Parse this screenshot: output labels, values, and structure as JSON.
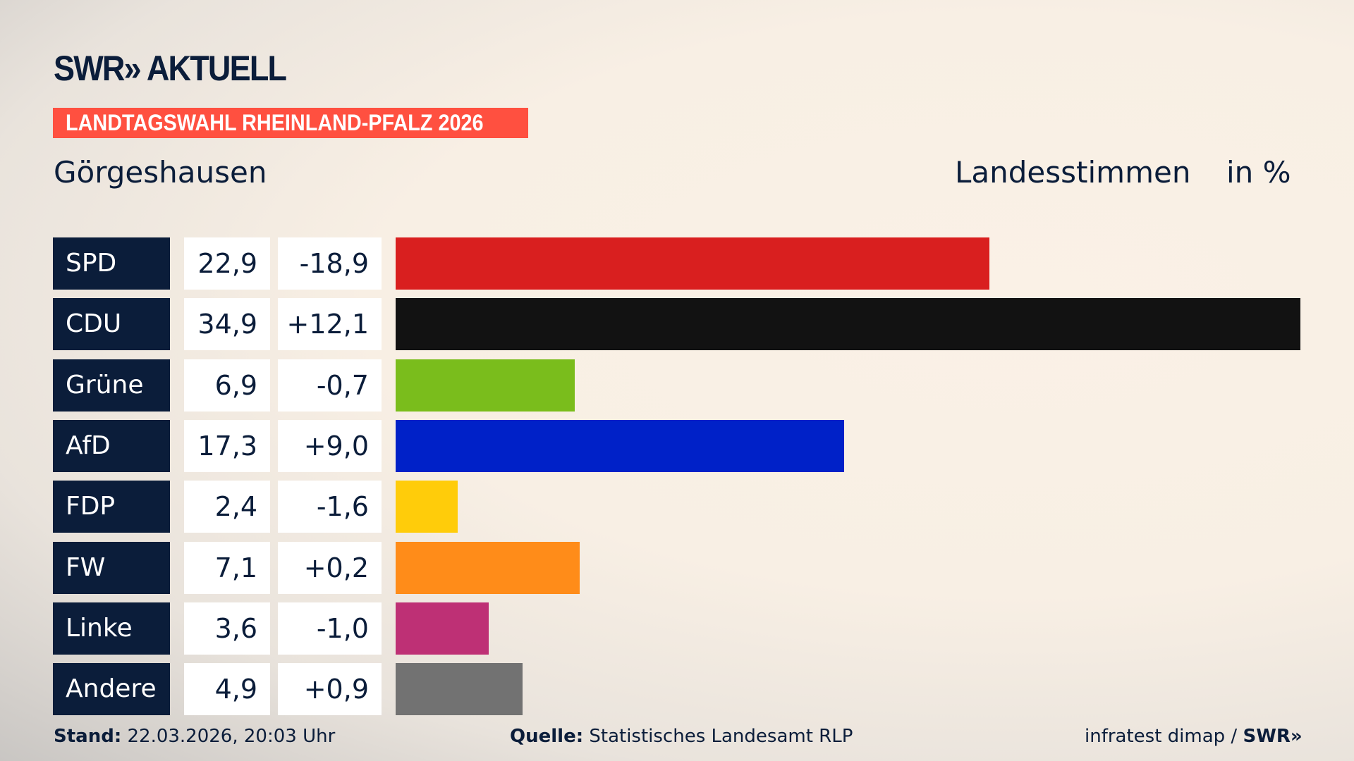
{
  "header": {
    "logo": "SWR» AKTUELL",
    "banner": "LANDTAGSWAHL RHEINLAND-PFALZ 2026",
    "place": "Görgeshausen",
    "vote_type": "Landesstimmen",
    "unit": "in %"
  },
  "chart_data": {
    "type": "bar",
    "orientation": "horizontal",
    "categories": [
      "SPD",
      "CDU",
      "Grüne",
      "AfD",
      "FDP",
      "FW",
      "Linke",
      "Andere"
    ],
    "values": [
      22.9,
      34.9,
      6.9,
      17.3,
      2.4,
      7.1,
      3.6,
      4.9
    ],
    "value_labels": [
      "22,9",
      "34,9",
      "6,9",
      "17,3",
      "2,4",
      "7,1",
      "3,6",
      "4,9"
    ],
    "changes": [
      -18.9,
      12.1,
      -0.7,
      9.0,
      -1.6,
      0.2,
      -1.0,
      0.9
    ],
    "change_labels": [
      "-18,9",
      "+12,1",
      "-0,7",
      "+9,0",
      "-1,6",
      "+0,2",
      "-1,0",
      "+0,9"
    ],
    "colors": [
      "#d91f1f",
      "#121212",
      "#7abd1c",
      "#0021c8",
      "#ffcc0a",
      "#ff8c19",
      "#be3075",
      "#727272"
    ],
    "xlim": [
      0,
      34.9
    ],
    "grid": false,
    "legend": "none"
  },
  "footer": {
    "stand_label": "Stand:",
    "stand": "22.03.2026, 20:03 Uhr",
    "source_label": "Quelle:",
    "source": "Statistisches Landesamt RLP",
    "credit": "infratest dimap /",
    "credit_logo": "SWR»"
  }
}
